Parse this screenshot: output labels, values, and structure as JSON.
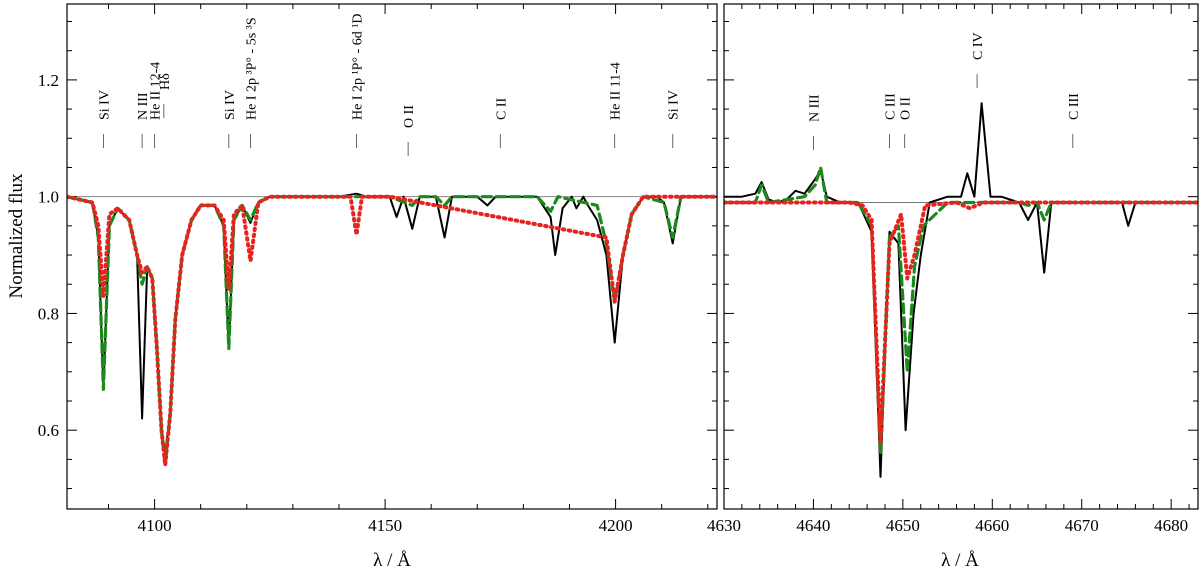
{
  "chart_data": [
    {
      "panel": "left",
      "type": "line",
      "xlabel": "λ / Å",
      "ylabel": "Normalized flux",
      "xlim": [
        4081,
        4222
      ],
      "ylim": [
        0.465,
        1.33
      ],
      "xticks": [
        4100,
        4150,
        4200
      ],
      "yticks": [
        0.6,
        0.8,
        1.0,
        1.2
      ],
      "continuum": 1.0,
      "line_ids": [
        {
          "label": "Si IV",
          "x": 4088.9
        },
        {
          "label": "N III",
          "x": 4097.3
        },
        {
          "label": "He II 12-4",
          "x": 4100.0
        },
        {
          "label": "Hδ",
          "x": 4102.0
        },
        {
          "label": "Si IV",
          "x": 4116.1
        },
        {
          "label": "He I 2p ³P° - 5s ³S",
          "x": 4120.8
        },
        {
          "label": "He I 2p ¹P° - 6d ¹D",
          "x": 4143.8
        },
        {
          "label": "O II",
          "x": 4155.0
        },
        {
          "label": "C II",
          "x": 4175.0
        },
        {
          "label": "He II 11-4",
          "x": 4199.8
        },
        {
          "label": "Si IV",
          "x": 4212.4
        }
      ],
      "series": [
        {
          "style": "solid",
          "color": "#000000",
          "x": [
            4081,
            4086.5,
            4087.8,
            4088.9,
            4090.2,
            4092,
            4094.5,
            4096.2,
            4097.3,
            4098.4,
            4099.5,
            4100.5,
            4101.5,
            4102.3,
            4103.4,
            4104.5,
            4106,
            4108,
            4110,
            4113,
            4115,
            4116.1,
            4117.2,
            4119,
            4120.8,
            4122.5,
            4125,
            4140,
            4143.8,
            4146,
            4151,
            4152.5,
            4154,
            4155.9,
            4157.5,
            4161,
            4162.9,
            4164.5,
            4170,
            4172.2,
            4174,
            4183,
            4185.9,
            4186.9,
            4188.5,
            4190.5,
            4191.5,
            4193,
            4194,
            4196,
            4198,
            4199.8,
            4201.6,
            4203.5,
            4206,
            4209,
            4210.5,
            4212.4,
            4214.2,
            4222
          ],
          "y": [
            1.0,
            0.99,
            0.93,
            0.67,
            0.95,
            0.98,
            0.96,
            0.9,
            0.62,
            0.88,
            0.86,
            0.74,
            0.6,
            0.56,
            0.63,
            0.79,
            0.9,
            0.96,
            0.985,
            0.985,
            0.95,
            0.74,
            0.96,
            0.985,
            0.955,
            0.99,
            1.0,
            1.0,
            1.005,
            1.0,
            1.0,
            0.965,
            1.0,
            0.945,
            1.0,
            1.0,
            0.93,
            1.0,
            1.0,
            0.985,
            1.0,
            1.0,
            0.965,
            0.9,
            0.98,
            1.0,
            0.98,
            1.0,
            0.985,
            0.96,
            0.9,
            0.75,
            0.9,
            0.97,
            1.0,
            1.0,
            0.99,
            0.92,
            1.0,
            1.0
          ]
        },
        {
          "style": "dashed",
          "color": "#1a8a1a",
          "x": [
            4081,
            4086.5,
            4087.8,
            4088.9,
            4090.2,
            4092,
            4094.5,
            4096.2,
            4097.3,
            4098.4,
            4099.5,
            4100.5,
            4101.5,
            4102.3,
            4103.4,
            4104.5,
            4106,
            4108,
            4110,
            4113,
            4115,
            4116.1,
            4117.2,
            4119,
            4120.8,
            4122.5,
            4125,
            4143.8,
            4151,
            4155.9,
            4157.5,
            4161,
            4162.9,
            4164.5,
            4183,
            4185.9,
            4187.5,
            4196,
            4198,
            4199.8,
            4201.6,
            4203.5,
            4206,
            4210.5,
            4212.4,
            4214.2,
            4222
          ],
          "y": [
            1.0,
            0.99,
            0.93,
            0.67,
            0.95,
            0.98,
            0.96,
            0.9,
            0.85,
            0.88,
            0.86,
            0.74,
            0.6,
            0.54,
            0.63,
            0.79,
            0.9,
            0.96,
            0.985,
            0.985,
            0.95,
            0.74,
            0.96,
            0.985,
            0.96,
            0.99,
            1.0,
            1.0,
            1.0,
            0.985,
            1.0,
            1.0,
            0.985,
            1.0,
            1.0,
            0.975,
            1.0,
            0.985,
            0.92,
            0.82,
            0.9,
            0.97,
            1.0,
            0.99,
            0.93,
            1.0,
            1.0
          ]
        },
        {
          "style": "dotted",
          "color": "#e8221f",
          "x": [
            4081,
            4086.5,
            4087.8,
            4088.9,
            4090.2,
            4092,
            4094.5,
            4096.2,
            4097.3,
            4098.4,
            4099.5,
            4100.5,
            4101.5,
            4102.3,
            4103.4,
            4104.5,
            4106,
            4108,
            4110,
            4113,
            4115,
            4116.1,
            4117.2,
            4119,
            4120.8,
            4122.5,
            4125,
            4142.5,
            4143.8,
            4145,
            4151,
            4198,
            4199.8,
            4201.6,
            4203.5,
            4206,
            4222
          ],
          "y": [
            1.0,
            0.99,
            0.95,
            0.83,
            0.97,
            0.98,
            0.96,
            0.9,
            0.87,
            0.88,
            0.86,
            0.74,
            0.6,
            0.54,
            0.63,
            0.79,
            0.9,
            0.96,
            0.985,
            0.985,
            0.96,
            0.84,
            0.97,
            0.985,
            0.89,
            0.99,
            1.0,
            1.0,
            0.935,
            1.0,
            1.0,
            0.93,
            0.82,
            0.9,
            0.97,
            1.0,
            1.0
          ]
        }
      ]
    },
    {
      "panel": "right",
      "type": "line",
      "xlabel": "λ / Å",
      "ylabel": "",
      "xlim": [
        4630,
        4683
      ],
      "ylim": [
        0.465,
        1.33
      ],
      "xticks": [
        4630,
        4640,
        4650,
        4660,
        4670,
        4680
      ],
      "yticks": [
        0.6,
        0.8,
        1.0,
        1.2
      ],
      "continuum": 0.99,
      "line_ids": [
        {
          "label": "N III",
          "x": 4640.0
        },
        {
          "label": "C III",
          "x": 4648.5
        },
        {
          "label": "O II",
          "x": 4650.2
        },
        {
          "label": "C IV",
          "x": 4658.3
        },
        {
          "label": "C III",
          "x": 4669.0
        }
      ],
      "series": [
        {
          "style": "solid",
          "color": "#000000",
          "x": [
            4630,
            4632,
            4633.5,
            4634.2,
            4635,
            4636,
            4637,
            4638,
            4639,
            4640.2,
            4640.8,
            4641.5,
            4643,
            4645,
            4646.5,
            4647.5,
            4648.5,
            4649.5,
            4650.3,
            4651.2,
            4652,
            4653,
            4655,
            4656.5,
            4657.2,
            4658,
            4658.8,
            4659.8,
            4661,
            4663,
            4664,
            4665,
            4665.8,
            4666.6,
            4668,
            4674.5,
            4675.2,
            4676,
            4683
          ],
          "y": [
            1.0,
            1.0,
            1.005,
            1.025,
            0.995,
            0.99,
            0.995,
            1.01,
            1.005,
            1.03,
            1.045,
            1.0,
            0.99,
            0.99,
            0.94,
            0.52,
            0.94,
            0.92,
            0.6,
            0.8,
            0.9,
            0.99,
            1.0,
            1.0,
            1.04,
            1.0,
            1.16,
            1.0,
            1.0,
            0.99,
            0.96,
            0.99,
            0.87,
            0.99,
            0.99,
            0.99,
            0.95,
            0.99,
            0.99
          ]
        },
        {
          "style": "dashed",
          "color": "#1a8a1a",
          "x": [
            4630,
            4633.5,
            4634.2,
            4635,
            4639,
            4640.2,
            4640.8,
            4641.5,
            4645,
            4646.5,
            4647.5,
            4648.5,
            4649.5,
            4650.5,
            4651.3,
            4652.3,
            4655,
            4658.5,
            4663,
            4664,
            4665,
            4665.8,
            4666.6,
            4683
          ],
          "y": [
            0.99,
            0.99,
            1.02,
            0.99,
            1.0,
            1.02,
            1.05,
            0.99,
            0.99,
            0.95,
            0.56,
            0.93,
            0.95,
            0.7,
            0.88,
            0.95,
            0.99,
            0.99,
            0.99,
            0.985,
            0.99,
            0.96,
            0.99,
            0.99
          ]
        },
        {
          "style": "dotted",
          "color": "#e8221f",
          "x": [
            4630,
            4634,
            4644,
            4645.5,
            4646.5,
            4647.5,
            4648.5,
            4649.8,
            4650.5,
            4651.3,
            4652.5,
            4656,
            4657.5,
            4659,
            4683
          ],
          "y": [
            0.99,
            0.99,
            0.99,
            0.985,
            0.96,
            0.58,
            0.92,
            0.97,
            0.86,
            0.9,
            0.985,
            0.99,
            0.98,
            0.99,
            0.99
          ]
        }
      ]
    }
  ]
}
